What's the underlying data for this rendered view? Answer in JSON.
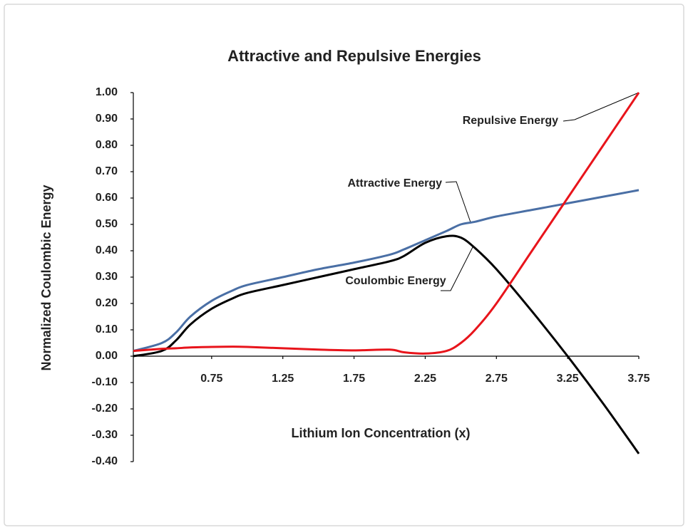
{
  "chart_data": {
    "type": "line",
    "title": "Attractive and Repulsive Energies",
    "x_label": "Lithium Ion Concentration (x)",
    "y_label": "Normalized Coulombic Energy",
    "annotations": [
      "Repulsive Energy",
      "Attractive Energy",
      "Coulombic Energy"
    ],
    "x": [
      0.2,
      0.4,
      0.5,
      0.6,
      0.75,
      0.9,
      1.0,
      1.25,
      1.5,
      1.75,
      2.0,
      2.1,
      2.25,
      2.4,
      2.5,
      2.6,
      2.75,
      3.0,
      3.25,
      3.5,
      3.75
    ],
    "series": [
      {
        "name": "Attractive Energy",
        "color": "#4a6fa5",
        "values": [
          0.02,
          0.05,
          0.09,
          0.15,
          0.21,
          0.25,
          0.27,
          0.3,
          0.33,
          0.355,
          0.385,
          0.405,
          0.44,
          0.475,
          0.5,
          0.51,
          0.53,
          0.555,
          0.58,
          0.605,
          0.63
        ]
      },
      {
        "name": "Coulombic Energy",
        "color": "#000000",
        "values": [
          0.0,
          0.02,
          0.06,
          0.12,
          0.18,
          0.22,
          0.24,
          0.27,
          0.3,
          0.33,
          0.36,
          0.38,
          0.43,
          0.455,
          0.45,
          0.41,
          0.33,
          0.17,
          0.0,
          -0.18,
          -0.37
        ]
      },
      {
        "name": "Repulsive Energy",
        "color": "#e8141b",
        "values": [
          0.02,
          0.028,
          0.03,
          0.033,
          0.035,
          0.036,
          0.035,
          0.03,
          0.025,
          0.022,
          0.025,
          0.015,
          0.01,
          0.02,
          0.05,
          0.1,
          0.2,
          0.4,
          0.6,
          0.8,
          1.0
        ]
      }
    ],
    "xlim": [
      0.2,
      3.75
    ],
    "xticks": [
      0.75,
      1.25,
      1.75,
      2.25,
      2.75,
      3.25,
      3.75
    ],
    "ylim": [
      -0.4,
      1.0
    ],
    "yticks": [
      {
        "value": 1.0,
        "label": "1.00"
      },
      {
        "value": 0.9,
        "label": "0.90"
      },
      {
        "value": 0.8,
        "label": "0.80"
      },
      {
        "value": 0.7,
        "label": "0.70"
      },
      {
        "value": 0.6,
        "label": "0.60"
      },
      {
        "value": 0.5,
        "label": "0.50"
      },
      {
        "value": 0.4,
        "label": "0.40"
      },
      {
        "value": 0.3,
        "label": "0.30"
      },
      {
        "value": 0.2,
        "label": "0.20"
      },
      {
        "value": 0.1,
        "label": "0.10"
      },
      {
        "value": 0.0,
        "label": "0.00"
      },
      {
        "value": -0.1,
        "label": "-0.10"
      },
      {
        "value": -0.2,
        "label": "-0.20"
      },
      {
        "value": -0.3,
        "label": "-0.30"
      },
      {
        "value": -0.4,
        "label": "-0.40"
      }
    ]
  }
}
